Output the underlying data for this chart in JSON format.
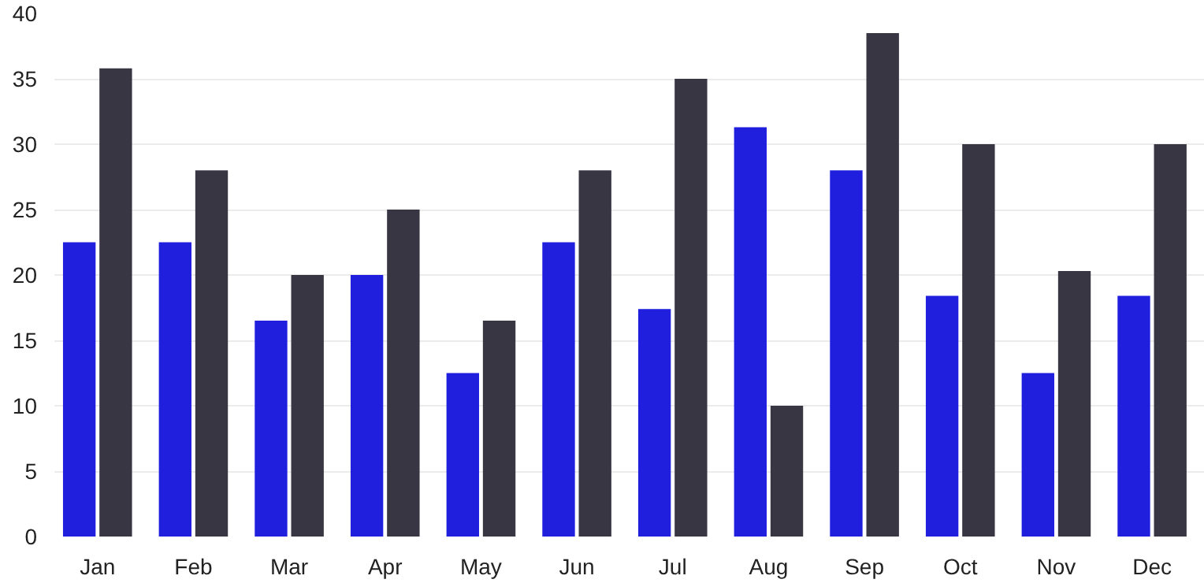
{
  "chart_data": {
    "type": "bar",
    "categories": [
      "Jan",
      "Feb",
      "Mar",
      "Apr",
      "May",
      "Jun",
      "Jul",
      "Aug",
      "Sep",
      "Oct",
      "Nov",
      "Dec"
    ],
    "series": [
      {
        "color": "#1f1fdd",
        "values": [
          22.5,
          22.5,
          16.5,
          20,
          12.5,
          22.5,
          17.4,
          31.3,
          28,
          18.4,
          12.5,
          18.4
        ]
      },
      {
        "color": "#383642",
        "values": [
          35.8,
          28,
          20,
          25,
          16.5,
          28,
          35,
          10,
          38.5,
          30,
          20.3,
          30
        ]
      }
    ],
    "ylim": [
      0,
      40
    ],
    "yticks": [
      0,
      5,
      10,
      15,
      20,
      25,
      30,
      35,
      40
    ],
    "grid": "y"
  }
}
